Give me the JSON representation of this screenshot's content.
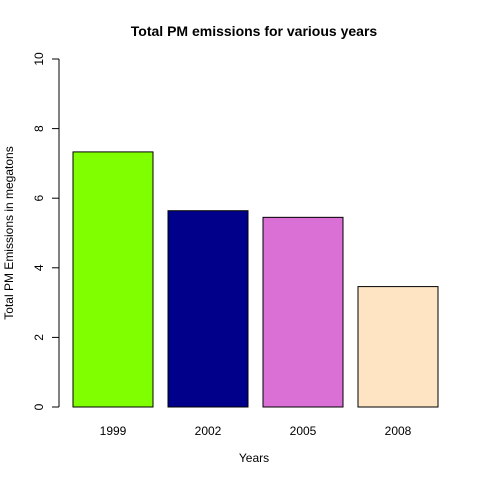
{
  "chart_data": {
    "type": "bar",
    "title": "Total PM emissions for various years",
    "xlabel": "Years",
    "ylabel": "Total PM Emissions in megatons",
    "categories": [
      "1999",
      "2002",
      "2005",
      "2008"
    ],
    "values": [
      7.33,
      5.64,
      5.45,
      3.46
    ],
    "colors": [
      "#7fff00",
      "#00008b",
      "#da70d6",
      "#ffe4c4"
    ],
    "ylim": [
      0,
      10
    ],
    "yticks": [
      "0",
      "2",
      "4",
      "6",
      "8",
      "10"
    ],
    "grid": false,
    "legend": "none"
  }
}
